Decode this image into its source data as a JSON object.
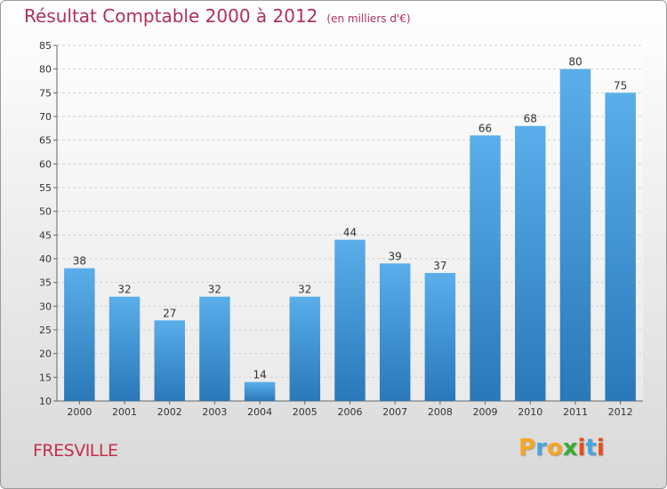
{
  "title": "Résultat Comptable 2000 à 2012",
  "subtitle": "(en milliers d'€)",
  "location": "FRESVILLE",
  "logo": {
    "letters": [
      "P",
      "r",
      "o",
      "x",
      "i",
      "t",
      "i"
    ],
    "colors": [
      "#f5a623",
      "#4aa3df",
      "#f5a623",
      "#3aaa35",
      "#e84e1b",
      "#4aa3df",
      "#e84e1b"
    ]
  },
  "colors": {
    "bar_light": "#5aaeea",
    "bar_dark": "#2a78b8",
    "title": "#b03058"
  },
  "chart_data": {
    "type": "bar",
    "categories": [
      "2000",
      "2001",
      "2002",
      "2003",
      "2004",
      "2005",
      "2006",
      "2007",
      "2008",
      "2009",
      "2010",
      "2011",
      "2012"
    ],
    "values": [
      38,
      32,
      27,
      32,
      14,
      32,
      44,
      39,
      37,
      66,
      68,
      80,
      75
    ],
    "ylim": [
      10,
      85
    ],
    "yticks": [
      10,
      15,
      20,
      25,
      30,
      35,
      40,
      45,
      50,
      55,
      60,
      65,
      70,
      75,
      80,
      85
    ],
    "grid": true,
    "title": "Résultat Comptable 2000 à 2012",
    "xlabel": "",
    "ylabel": ""
  }
}
